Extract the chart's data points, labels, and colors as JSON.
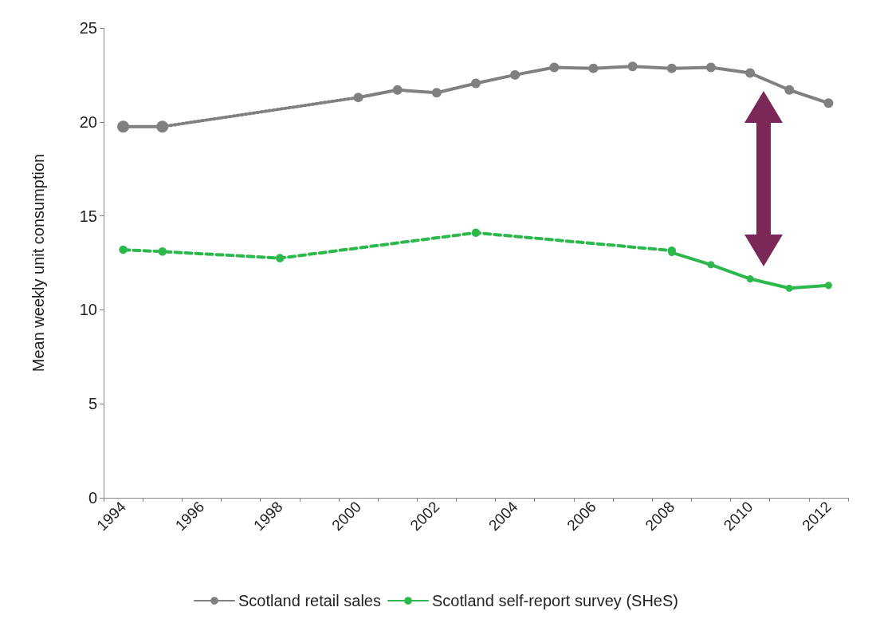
{
  "chart_data": {
    "type": "line",
    "ylabel": "Mean weekly unit consumption",
    "categories": [
      "1994",
      null,
      "1996",
      null,
      "1998",
      null,
      "2000",
      null,
      "2002",
      null,
      "2004",
      null,
      "2006",
      null,
      "2008",
      null,
      "2010",
      null,
      "2012"
    ],
    "series": [
      {
        "color": "#808080",
        "line_style": "solid",
        "marker": "circle",
        "values": [
          19.75,
          19.75,
          null,
          null,
          null,
          null,
          null,
          null,
          null,
          null,
          null,
          null,
          null,
          null,
          null,
          null,
          null,
          null,
          null
        ]
      },
      {
        "color": "#808080",
        "line_style": "dotted",
        "marker": "none",
        "values": [
          null,
          19.75,
          null,
          null,
          null,
          null,
          21.3,
          null,
          null,
          null,
          null,
          null,
          null,
          null,
          null,
          null,
          null,
          null,
          null
        ]
      },
      {
        "name": "Scotland retail sales",
        "color": "#808080",
        "line_style": "solid",
        "marker": "circle",
        "values": [
          null,
          null,
          null,
          null,
          null,
          null,
          21.3,
          21.7,
          21.55,
          22.05,
          22.5,
          22.9,
          22.85,
          22.95,
          22.85,
          22.9,
          22.6,
          21.7,
          21.0
        ]
      },
      {
        "color": "#2db84d",
        "line_style": "dashed",
        "marker": "circle",
        "values": [
          13.2,
          13.1,
          null,
          null,
          12.75,
          null,
          null,
          null,
          null,
          14.1,
          null,
          null,
          null,
          null,
          13.15,
          null,
          null,
          null,
          null
        ]
      },
      {
        "name": "Scotland self-report survey (SHeS)",
        "color": "#2db84d",
        "line_style": "solid",
        "marker": "circle",
        "values": [
          null,
          null,
          null,
          null,
          null,
          null,
          null,
          null,
          null,
          null,
          null,
          null,
          null,
          null,
          13.05,
          12.4,
          11.65,
          11.15,
          11.3
        ]
      }
    ],
    "ylim": [
      0,
      25
    ],
    "yticks": [
      0,
      5,
      10,
      15,
      20,
      25
    ],
    "grid": false,
    "legend": "bottom"
  }
}
